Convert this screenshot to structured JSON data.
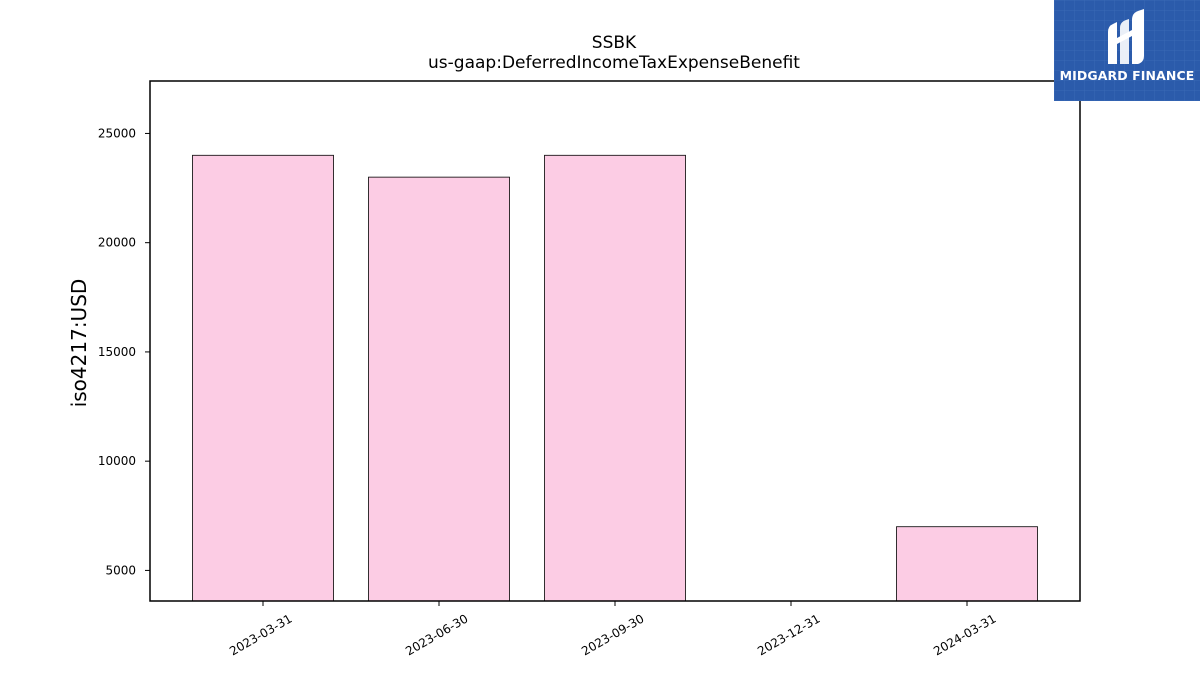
{
  "chart_data": {
    "type": "bar",
    "title": "SSBK",
    "subtitle": "us-gaap:DeferredIncomeTaxExpenseBenefit",
    "xlabel": "",
    "ylabel": "iso4217:USD",
    "categories": [
      "2023-03-31",
      "2023-06-30",
      "2023-09-30",
      "2023-12-31",
      "2024-03-31"
    ],
    "values": [
      24000,
      23000,
      24000,
      null,
      7000
    ],
    "ylim": [
      3600,
      27400
    ],
    "yticks": [
      5000,
      10000,
      15000,
      20000,
      25000
    ],
    "bar_color": "#fccce4",
    "bar_edge_color": "#000000",
    "grid": false,
    "legend": "none"
  },
  "logo": {
    "text": "MIDGARD FINANCE",
    "background": "#2b5bab"
  }
}
